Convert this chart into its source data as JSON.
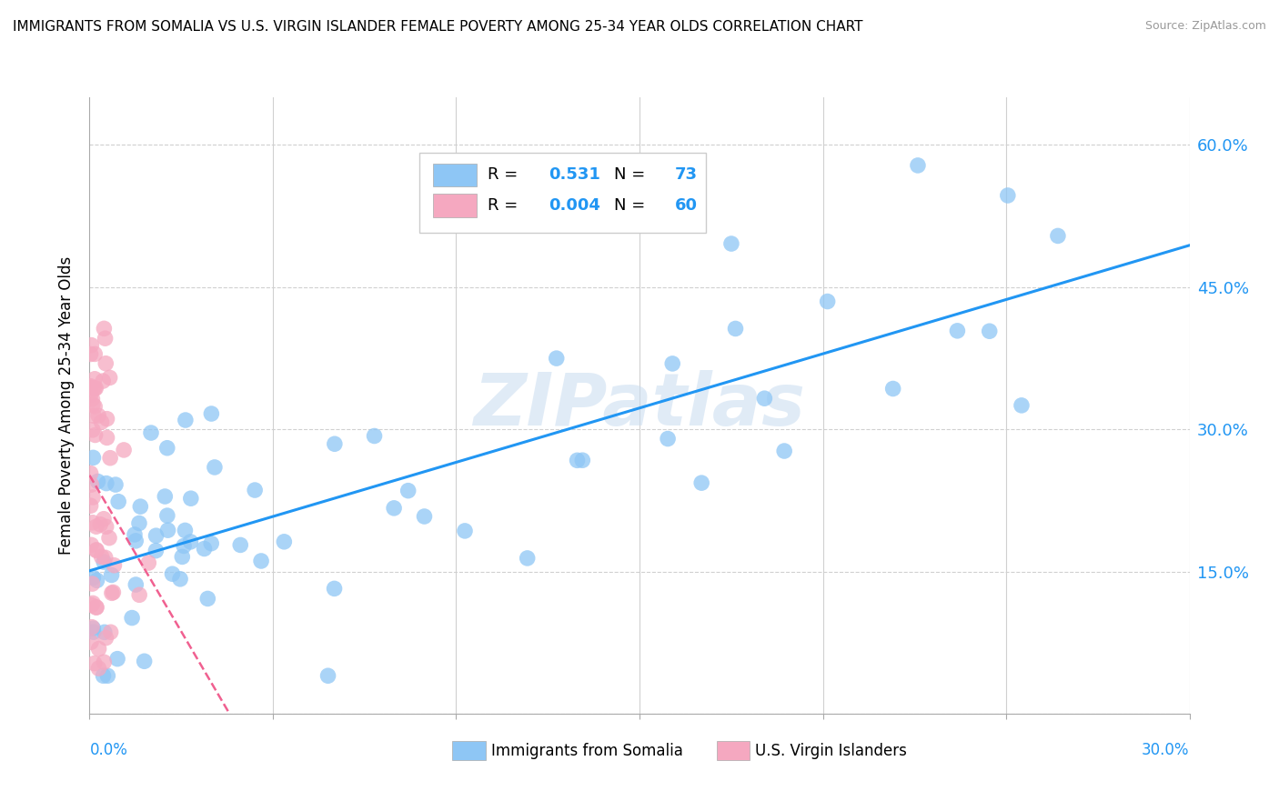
{
  "title": "IMMIGRANTS FROM SOMALIA VS U.S. VIRGIN ISLANDER FEMALE POVERTY AMONG 25-34 YEAR OLDS CORRELATION CHART",
  "source": "Source: ZipAtlas.com",
  "ylabel": "Female Poverty Among 25-34 Year Olds",
  "xmin": 0.0,
  "xmax": 0.3,
  "ymin": 0.0,
  "ymax": 0.65,
  "R_somalia": 0.531,
  "N_somalia": 73,
  "R_virgin": 0.004,
  "N_virgin": 60,
  "blue_color": "#8EC6F5",
  "pink_color": "#F5A8C0",
  "blue_line_color": "#2196F3",
  "pink_line_color": "#F06090",
  "watermark": "ZIPatlas"
}
